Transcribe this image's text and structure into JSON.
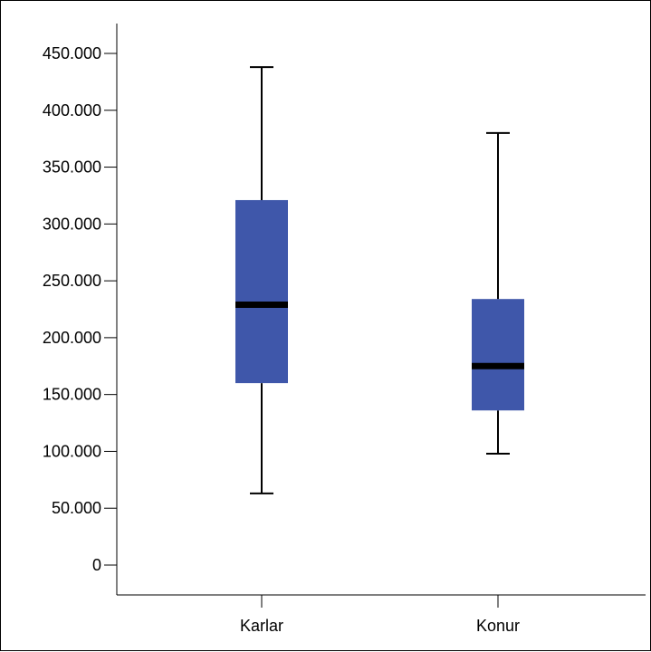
{
  "chart_data": {
    "type": "boxplot",
    "title": "",
    "xlabel": "",
    "ylabel": "",
    "categories": [
      "Karlar",
      "Konur"
    ],
    "ylim": [
      0,
      450000
    ],
    "y_ticks": [
      0,
      50000,
      100000,
      150000,
      200000,
      250000,
      300000,
      350000,
      400000,
      450000
    ],
    "y_tick_labels": [
      "0",
      "50.000",
      "100.000",
      "150.000",
      "200.000",
      "250.000",
      "300.000",
      "350.000",
      "400.000",
      "450.000"
    ],
    "boxes": [
      {
        "category": "Karlar",
        "min": 63000,
        "q1": 160000,
        "median": 229000,
        "q3": 321000,
        "max": 438000
      },
      {
        "category": "Konur",
        "min": 98000,
        "q1": 136000,
        "median": 175000,
        "q3": 234000,
        "max": 380000
      }
    ],
    "grid": false,
    "colors": {
      "box_fill": "#3f57aa",
      "median": "#000000",
      "whisker": "#000000",
      "axis": "#000000"
    }
  }
}
